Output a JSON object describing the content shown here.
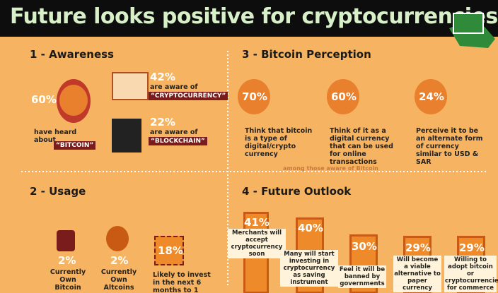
{
  "header": {
    "title": "Future looks positive for cryptocurrencies"
  },
  "awareness": {
    "heading": "1 - Awareness",
    "items": [
      {
        "pct": "60%",
        "text": "have heard about",
        "term": "“BITCOIN”"
      },
      {
        "pct": "42%",
        "text": "are aware of",
        "term": "“CRYPTOCURRENCY”"
      },
      {
        "pct": "22%",
        "text": "are aware of",
        "term": "“BLOCKCHAIN”"
      }
    ]
  },
  "perception": {
    "heading": "3 - Bitcoin Perception",
    "note": "among those aware of Bitcoin",
    "items": [
      {
        "pct": "70%",
        "text": "Think that bitcoin is a type of digital/crypto currency"
      },
      {
        "pct": "60%",
        "text": "Think of it as a digital currency that can be used for online transactions"
      },
      {
        "pct": "24%",
        "text": "Perceive it to be an alternate form of currency similar to USD & SAR"
      }
    ]
  },
  "usage": {
    "heading": "2 - Usage",
    "items": [
      {
        "pct": "2%",
        "text": "Currently Own Bitcoin"
      },
      {
        "pct": "2%",
        "text": "Currently Own Altcoins"
      },
      {
        "pct": "18%",
        "text": "Likely to invest in the next 6 months to 1"
      }
    ]
  },
  "outlook": {
    "heading": "4 - Future Outlook",
    "items": [
      {
        "pct": "41%",
        "text": "Merchants will accept cryptocurrency soon"
      },
      {
        "pct": "40%",
        "text": "Many will start investing in cryptocurrency as saving instrument"
      },
      {
        "pct": "30%",
        "text": "Feel it will be banned by governments"
      },
      {
        "pct": "29%",
        "text": "Will become a viable alternative to paper currency"
      },
      {
        "pct": "29%",
        "text": "Willing to adopt bitcoin or cryptocurrencies for commerce"
      }
    ]
  }
}
